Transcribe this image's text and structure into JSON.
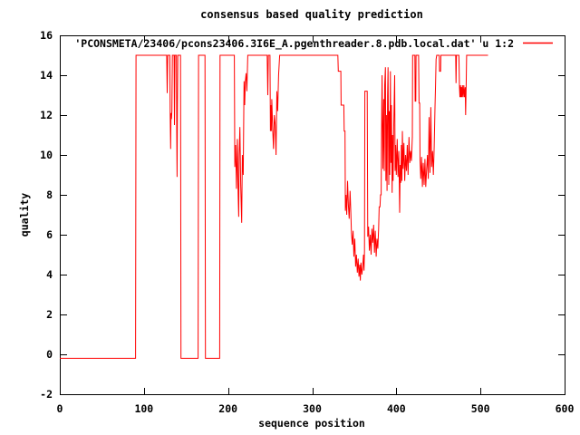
{
  "chart_data": {
    "type": "line",
    "title": "consensus based quality prediction",
    "xlabel": "sequence position",
    "ylabel": "quality",
    "xlim": [
      0,
      600
    ],
    "ylim": [
      -2,
      16
    ],
    "x_ticks": [
      0,
      100,
      200,
      300,
      400,
      500,
      600
    ],
    "y_ticks": [
      -2,
      0,
      2,
      4,
      6,
      8,
      10,
      12,
      14,
      16
    ],
    "grid": false,
    "legend_position": "top-right-inside",
    "background": "#ffffff",
    "border_color": "#000000",
    "series": [
      {
        "name": "'PCONSMETA/23406/pcons23406.3I6E_A.pgenthreader.8.pdb.local.dat' u 1:2",
        "color": "#ff0000",
        "points": [
          [
            0,
            -0.2
          ],
          [
            90,
            -0.2
          ],
          [
            90.6,
            15
          ],
          [
            127,
            15
          ],
          [
            127.6,
            13.1
          ],
          [
            128.3,
            15
          ],
          [
            130.8,
            15
          ],
          [
            131.2,
            12
          ],
          [
            131.7,
            10.3
          ],
          [
            132.2,
            12.1
          ],
          [
            132.7,
            11.8
          ],
          [
            133.2,
            12.2
          ],
          [
            133.8,
            15
          ],
          [
            135.8,
            15
          ],
          [
            136.3,
            11.5
          ],
          [
            136.9,
            15
          ],
          [
            138.6,
            15
          ],
          [
            139,
            11.2
          ],
          [
            139.4,
            8.9
          ],
          [
            139.8,
            12.5
          ],
          [
            140.3,
            15
          ],
          [
            143.5,
            15
          ],
          [
            144,
            -0.2
          ],
          [
            164.4,
            -0.2
          ],
          [
            164.9,
            15
          ],
          [
            172.6,
            15
          ],
          [
            173.1,
            -0.2
          ],
          [
            190,
            -0.2
          ],
          [
            190.5,
            15
          ],
          [
            207.5,
            15
          ],
          [
            208,
            9.4
          ],
          [
            209,
            10.5
          ],
          [
            210,
            8.3
          ],
          [
            211,
            10.8
          ],
          [
            212,
            8
          ],
          [
            212.6,
            6.9
          ],
          [
            213.2,
            10
          ],
          [
            214,
            11.4
          ],
          [
            215,
            8.5
          ],
          [
            216.2,
            6.6
          ],
          [
            217,
            10
          ],
          [
            218,
            9
          ],
          [
            219,
            13.7
          ],
          [
            219.8,
            12.5
          ],
          [
            220.5,
            13.7
          ],
          [
            221.5,
            14.1
          ],
          [
            222.3,
            13.2
          ],
          [
            223.4,
            15
          ],
          [
            246.5,
            15
          ],
          [
            247.2,
            13
          ],
          [
            247.9,
            15
          ],
          [
            249.8,
            15
          ],
          [
            250.3,
            11.2
          ],
          [
            250.9,
            12.5
          ],
          [
            251.4,
            11.2
          ],
          [
            252,
            12.8
          ],
          [
            253,
            11.3
          ],
          [
            254,
            10.3
          ],
          [
            255,
            12
          ],
          [
            256,
            11.5
          ],
          [
            257,
            10
          ],
          [
            258,
            13.2
          ],
          [
            259,
            12.2
          ],
          [
            260,
            14
          ],
          [
            261.3,
            15
          ],
          [
            330.5,
            15
          ],
          [
            331,
            14.2
          ],
          [
            334,
            14.2
          ],
          [
            334.4,
            12.5
          ],
          [
            337.6,
            12.5
          ],
          [
            338,
            11.2
          ],
          [
            339,
            11.2
          ],
          [
            339.4,
            7.2
          ],
          [
            340.2,
            8
          ],
          [
            341,
            7
          ],
          [
            342,
            8.7
          ],
          [
            343,
            7.5
          ],
          [
            344,
            6.8
          ],
          [
            345,
            8.2
          ],
          [
            346,
            7
          ],
          [
            346.6,
            6.1
          ],
          [
            347.6,
            5.5
          ],
          [
            348.6,
            6.2
          ],
          [
            349.6,
            4.9
          ],
          [
            350.6,
            5.8
          ],
          [
            351.6,
            4.4
          ],
          [
            352.6,
            5
          ],
          [
            353.6,
            4.1
          ],
          [
            354.6,
            4.8
          ],
          [
            355.6,
            3.9
          ],
          [
            356.6,
            4.5
          ],
          [
            357.2,
            3.7
          ],
          [
            358,
            4.6
          ],
          [
            359,
            4
          ],
          [
            360,
            4.4
          ],
          [
            361,
            5
          ],
          [
            361.6,
            4.2
          ],
          [
            362.2,
            5.2
          ],
          [
            362.6,
            13.2
          ],
          [
            365.4,
            13.2
          ],
          [
            366,
            5.9
          ],
          [
            367,
            6.4
          ],
          [
            368,
            5.2
          ],
          [
            369,
            6
          ],
          [
            370,
            5
          ],
          [
            371,
            6.3
          ],
          [
            372,
            5.6
          ],
          [
            373,
            6.5
          ],
          [
            374,
            5.1
          ],
          [
            375,
            6.2
          ],
          [
            376,
            4.9
          ],
          [
            377,
            5.8
          ],
          [
            378,
            5.3
          ],
          [
            379,
            6.3
          ],
          [
            379.6,
            7.4
          ],
          [
            380.6,
            7.4
          ],
          [
            381.2,
            8
          ],
          [
            382,
            8
          ],
          [
            382.4,
            11
          ],
          [
            383,
            14
          ],
          [
            384,
            9.3
          ],
          [
            385,
            12.8
          ],
          [
            385.6,
            9.2
          ],
          [
            386.2,
            13.5
          ],
          [
            387,
            14.4
          ],
          [
            387.6,
            8.7
          ],
          [
            388.2,
            12
          ],
          [
            389,
            8.2
          ],
          [
            389.6,
            13
          ],
          [
            390.2,
            14.4
          ],
          [
            391,
            8.5
          ],
          [
            391.6,
            12.2
          ],
          [
            392.2,
            9
          ],
          [
            393,
            14.2
          ],
          [
            393.6,
            9.6
          ],
          [
            394.2,
            12.5
          ],
          [
            395,
            8.1
          ],
          [
            395.6,
            11
          ],
          [
            396.2,
            8.7
          ],
          [
            397,
            11.5
          ],
          [
            398,
            14
          ],
          [
            398.6,
            9.2
          ],
          [
            399.2,
            10.5
          ],
          [
            400,
            9
          ],
          [
            401,
            10.8
          ],
          [
            402,
            8.9
          ],
          [
            403,
            10.2
          ],
          [
            404,
            7.1
          ],
          [
            404.6,
            9.5
          ],
          [
            405.2,
            8.6
          ],
          [
            406,
            10.5
          ],
          [
            406.6,
            8.7
          ],
          [
            407.2,
            11.2
          ],
          [
            408,
            9.3
          ],
          [
            409,
            10.6
          ],
          [
            410,
            8.7
          ],
          [
            411,
            10
          ],
          [
            412,
            9.2
          ],
          [
            413,
            10.5
          ],
          [
            414,
            9
          ],
          [
            415,
            10.9
          ],
          [
            416,
            9.6
          ],
          [
            417,
            10.2
          ],
          [
            418,
            9.7
          ],
          [
            419,
            10.9
          ],
          [
            419.4,
            15
          ],
          [
            422,
            15
          ],
          [
            422.4,
            12.7
          ],
          [
            423.1,
            12.7
          ],
          [
            423.5,
            15
          ],
          [
            426.5,
            15
          ],
          [
            427,
            12.6
          ],
          [
            427.8,
            12.6
          ],
          [
            428.2,
            9.7
          ],
          [
            429,
            8.8
          ],
          [
            430,
            9.9
          ],
          [
            431,
            8.4
          ],
          [
            432,
            9.6
          ],
          [
            433,
            8.5
          ],
          [
            434,
            9.8
          ],
          [
            435,
            8.4
          ],
          [
            436,
            9.3
          ],
          [
            437,
            10
          ],
          [
            438,
            8.8
          ],
          [
            439,
            11.9
          ],
          [
            440,
            9.1
          ],
          [
            441,
            12.4
          ],
          [
            442,
            9.4
          ],
          [
            443,
            10.2
          ],
          [
            444,
            9
          ],
          [
            445,
            10.4
          ],
          [
            446,
            12.4
          ],
          [
            446.6,
            13.5
          ],
          [
            447.2,
            14.8
          ],
          [
            448,
            15
          ],
          [
            451,
            15
          ],
          [
            451.4,
            14.2
          ],
          [
            452.6,
            14.2
          ],
          [
            453,
            15
          ],
          [
            470.5,
            15
          ],
          [
            471,
            13.6
          ],
          [
            471.5,
            15
          ],
          [
            474.4,
            15
          ],
          [
            475,
            13.4
          ],
          [
            475.6,
            12.9
          ],
          [
            476.2,
            13.5
          ],
          [
            476.8,
            12.9
          ],
          [
            477.4,
            13.4
          ],
          [
            478,
            12.9
          ],
          [
            478.6,
            13.5
          ],
          [
            479.4,
            12.9
          ],
          [
            480.2,
            13.5
          ],
          [
            481,
            12.9
          ],
          [
            481.8,
            13.4
          ],
          [
            482.4,
            12
          ],
          [
            483,
            13.5
          ],
          [
            483.6,
            15
          ],
          [
            509,
            15
          ]
        ]
      }
    ]
  }
}
